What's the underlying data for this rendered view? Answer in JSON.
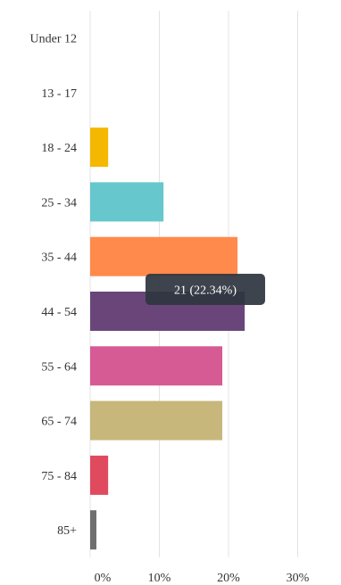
{
  "chart_data": {
    "type": "bar",
    "orientation": "horizontal",
    "categories": [
      "Under 12",
      "13 - 17",
      "18 - 24",
      "25 - 34",
      "35 - 44",
      "44 - 54",
      "55 - 64",
      "65 - 74",
      "75 - 84",
      "85+"
    ],
    "values": [
      0,
      0,
      2.6,
      10.6,
      21.3,
      22.34,
      19.1,
      19.1,
      2.6,
      0.9
    ],
    "colors": [
      "#f5b800",
      "#f5b800",
      "#f5b800",
      "#66c7cc",
      "#ff8a4c",
      "#6a457a",
      "#d65a93",
      "#c7b77b",
      "#e04a5f",
      "#6f6f6f"
    ],
    "xlim": [
      0,
      35
    ],
    "xticks": [
      0,
      10,
      20,
      30
    ],
    "xtick_labels": [
      "0%",
      "10%",
      "20%",
      "30%"
    ],
    "grid": true,
    "tooltip": {
      "category": "44 - 54",
      "text": "21 (22.34%)"
    }
  }
}
